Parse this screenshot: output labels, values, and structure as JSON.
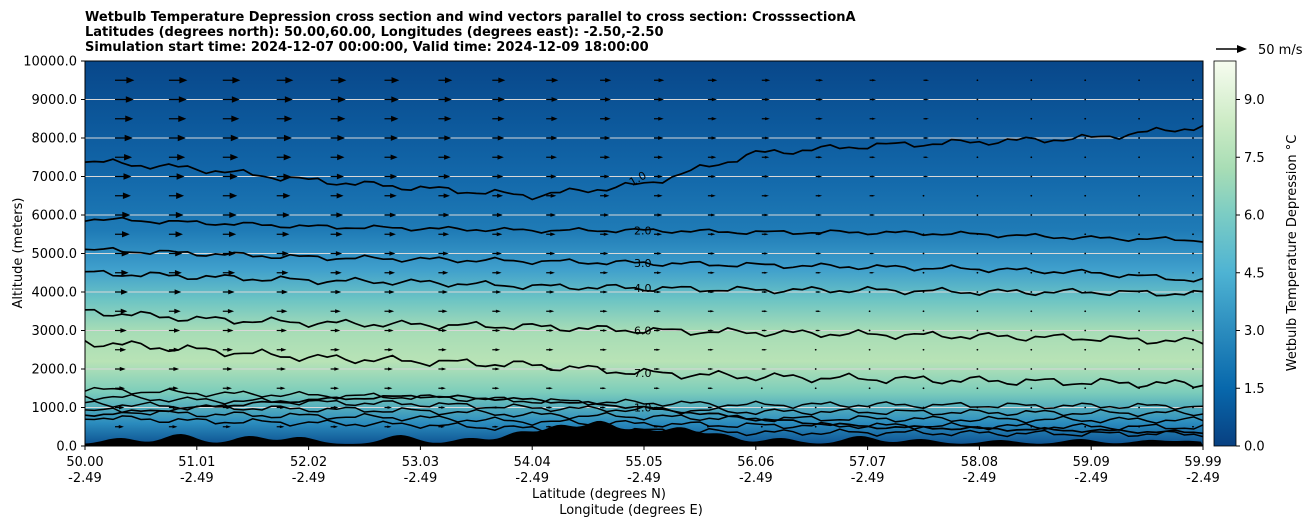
{
  "chart_data": {
    "type": "contour",
    "title_lines": [
      "Wetbulb Temperature Depression cross section and wind vectors parallel to cross section: CrosssectionA",
      "Latitudes (degrees north): 50.00,60.00, Longitudes (degrees east): -2.50,-2.50",
      "Simulation start time: 2024-12-07 00:00:00, Valid time: 2024-12-09 18:00:00"
    ],
    "xlabel": "Latitude (degrees N)",
    "xlabel2": "Longitude (degrees E)",
    "ylabel": "Altitude (meters)",
    "colorbar_label": "Wetbulb Temperature Depression °C",
    "quiver_key": "50 m/s",
    "x_ticks": [
      {
        "lat": "50.00",
        "lon": "-2.49"
      },
      {
        "lat": "51.01",
        "lon": "-2.49"
      },
      {
        "lat": "52.02",
        "lon": "-2.49"
      },
      {
        "lat": "53.03",
        "lon": "-2.49"
      },
      {
        "lat": "54.04",
        "lon": "-2.49"
      },
      {
        "lat": "55.05",
        "lon": "-2.49"
      },
      {
        "lat": "56.06",
        "lon": "-2.49"
      },
      {
        "lat": "57.07",
        "lon": "-2.49"
      },
      {
        "lat": "58.08",
        "lon": "-2.49"
      },
      {
        "lat": "59.09",
        "lon": "-2.49"
      },
      {
        "lat": "59.99",
        "lon": "-2.49"
      }
    ],
    "xlim": [
      50.0,
      59.99
    ],
    "y_ticks": [
      "0.0",
      "1000.0",
      "2000.0",
      "3000.0",
      "4000.0",
      "5000.0",
      "6000.0",
      "7000.0",
      "8000.0",
      "9000.0",
      "10000.0"
    ],
    "ylim": [
      0,
      10000
    ],
    "colorbar_ticks": [
      "0.0",
      "1.5",
      "3.0",
      "4.5",
      "6.0",
      "7.5",
      "9.0"
    ],
    "colorbar_range": [
      0,
      10
    ],
    "grid": "horizontal",
    "contour_levels": [
      {
        "value": 1.0,
        "label": "1.0",
        "altitude": [
          800,
          1000,
          1200,
          1300,
          1200,
          1000,
          700,
          500,
          450,
          400,
          350
        ]
      },
      {
        "value": 2.0,
        "label": "2.0",
        "altitude": [
          5900,
          5800,
          5700,
          5650,
          5600,
          5600,
          5550,
          5550,
          5500,
          5400,
          5350
        ]
      },
      {
        "value": 3.0,
        "label": "3.0",
        "altitude": [
          5100,
          5000,
          4900,
          4850,
          4800,
          4750,
          4700,
          4650,
          4600,
          4500,
          4300
        ]
      },
      {
        "value": 4.0,
        "label": "4.0",
        "altitude": [
          4500,
          4400,
          4300,
          4250,
          4150,
          4100,
          4050,
          4050,
          4000,
          4000,
          3950
        ]
      },
      {
        "value": 6.0,
        "label": "6.0",
        "altitude": [
          3500,
          3300,
          3200,
          3150,
          3100,
          3000,
          2950,
          2900,
          2850,
          2800,
          2700
        ]
      },
      {
        "value": 7.0,
        "label": "7.0",
        "altitude": [
          2700,
          2500,
          2300,
          2200,
          2100,
          1900,
          1800,
          1750,
          1700,
          1650,
          1600
        ]
      }
    ],
    "upper_contour": {
      "value": 1.0,
      "label": "1.0",
      "altitude": [
        7400,
        7200,
        6900,
        6700,
        6500,
        6800,
        7600,
        7800,
        7900,
        8000,
        8300
      ]
    },
    "wind_vectors": "parallel to cross section, strongest at upper levels near 50.00 N"
  }
}
